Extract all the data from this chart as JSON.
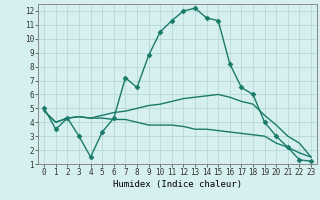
{
  "xlabel": "Humidex (Indice chaleur)",
  "ylabel": "",
  "background_color": "#d6f0f0",
  "grid_color": "#b8d8d8",
  "line_color": "#1a7a6a",
  "xlim": [
    -0.5,
    23.5
  ],
  "ylim": [
    1,
    12.5
  ],
  "xticks": [
    0,
    1,
    2,
    3,
    4,
    5,
    6,
    7,
    8,
    9,
    10,
    11,
    12,
    13,
    14,
    15,
    16,
    17,
    18,
    19,
    20,
    21,
    22,
    23
  ],
  "yticks": [
    1,
    2,
    3,
    4,
    5,
    6,
    7,
    8,
    9,
    10,
    11,
    12
  ],
  "line1_x": [
    0,
    1,
    2,
    3,
    4,
    5,
    6,
    7,
    8,
    9,
    10,
    11,
    12,
    13,
    14,
    15,
    16,
    17,
    18,
    19,
    20,
    21,
    22,
    23
  ],
  "line1_y": [
    5.0,
    3.5,
    4.3,
    3.0,
    1.5,
    3.3,
    4.3,
    7.2,
    6.5,
    8.8,
    10.5,
    11.3,
    12.0,
    12.2,
    11.5,
    11.3,
    8.2,
    6.5,
    6.0,
    4.0,
    3.0,
    2.2,
    1.3,
    1.2
  ],
  "line2_x": [
    0,
    1,
    2,
    3,
    4,
    5,
    6,
    7,
    8,
    9,
    10,
    11,
    12,
    13,
    14,
    15,
    16,
    17,
    18,
    19,
    20,
    21,
    22,
    23
  ],
  "line2_y": [
    4.8,
    4.0,
    4.3,
    4.4,
    4.3,
    4.3,
    4.2,
    4.2,
    4.0,
    3.8,
    3.8,
    3.8,
    3.7,
    3.5,
    3.5,
    3.4,
    3.3,
    3.2,
    3.1,
    3.0,
    2.5,
    2.2,
    1.8,
    1.5
  ],
  "line3_x": [
    0,
    1,
    2,
    3,
    4,
    5,
    6,
    7,
    8,
    9,
    10,
    11,
    12,
    13,
    14,
    15,
    16,
    17,
    18,
    19,
    20,
    21,
    22,
    23
  ],
  "line3_y": [
    4.8,
    4.0,
    4.3,
    4.4,
    4.3,
    4.5,
    4.7,
    4.8,
    5.0,
    5.2,
    5.3,
    5.5,
    5.7,
    5.8,
    5.9,
    6.0,
    5.8,
    5.5,
    5.3,
    4.5,
    3.8,
    3.0,
    2.5,
    1.5
  ],
  "marker_size": 2.5,
  "line_width": 1.0,
  "tick_fontsize": 5.5,
  "xlabel_fontsize": 6.5
}
